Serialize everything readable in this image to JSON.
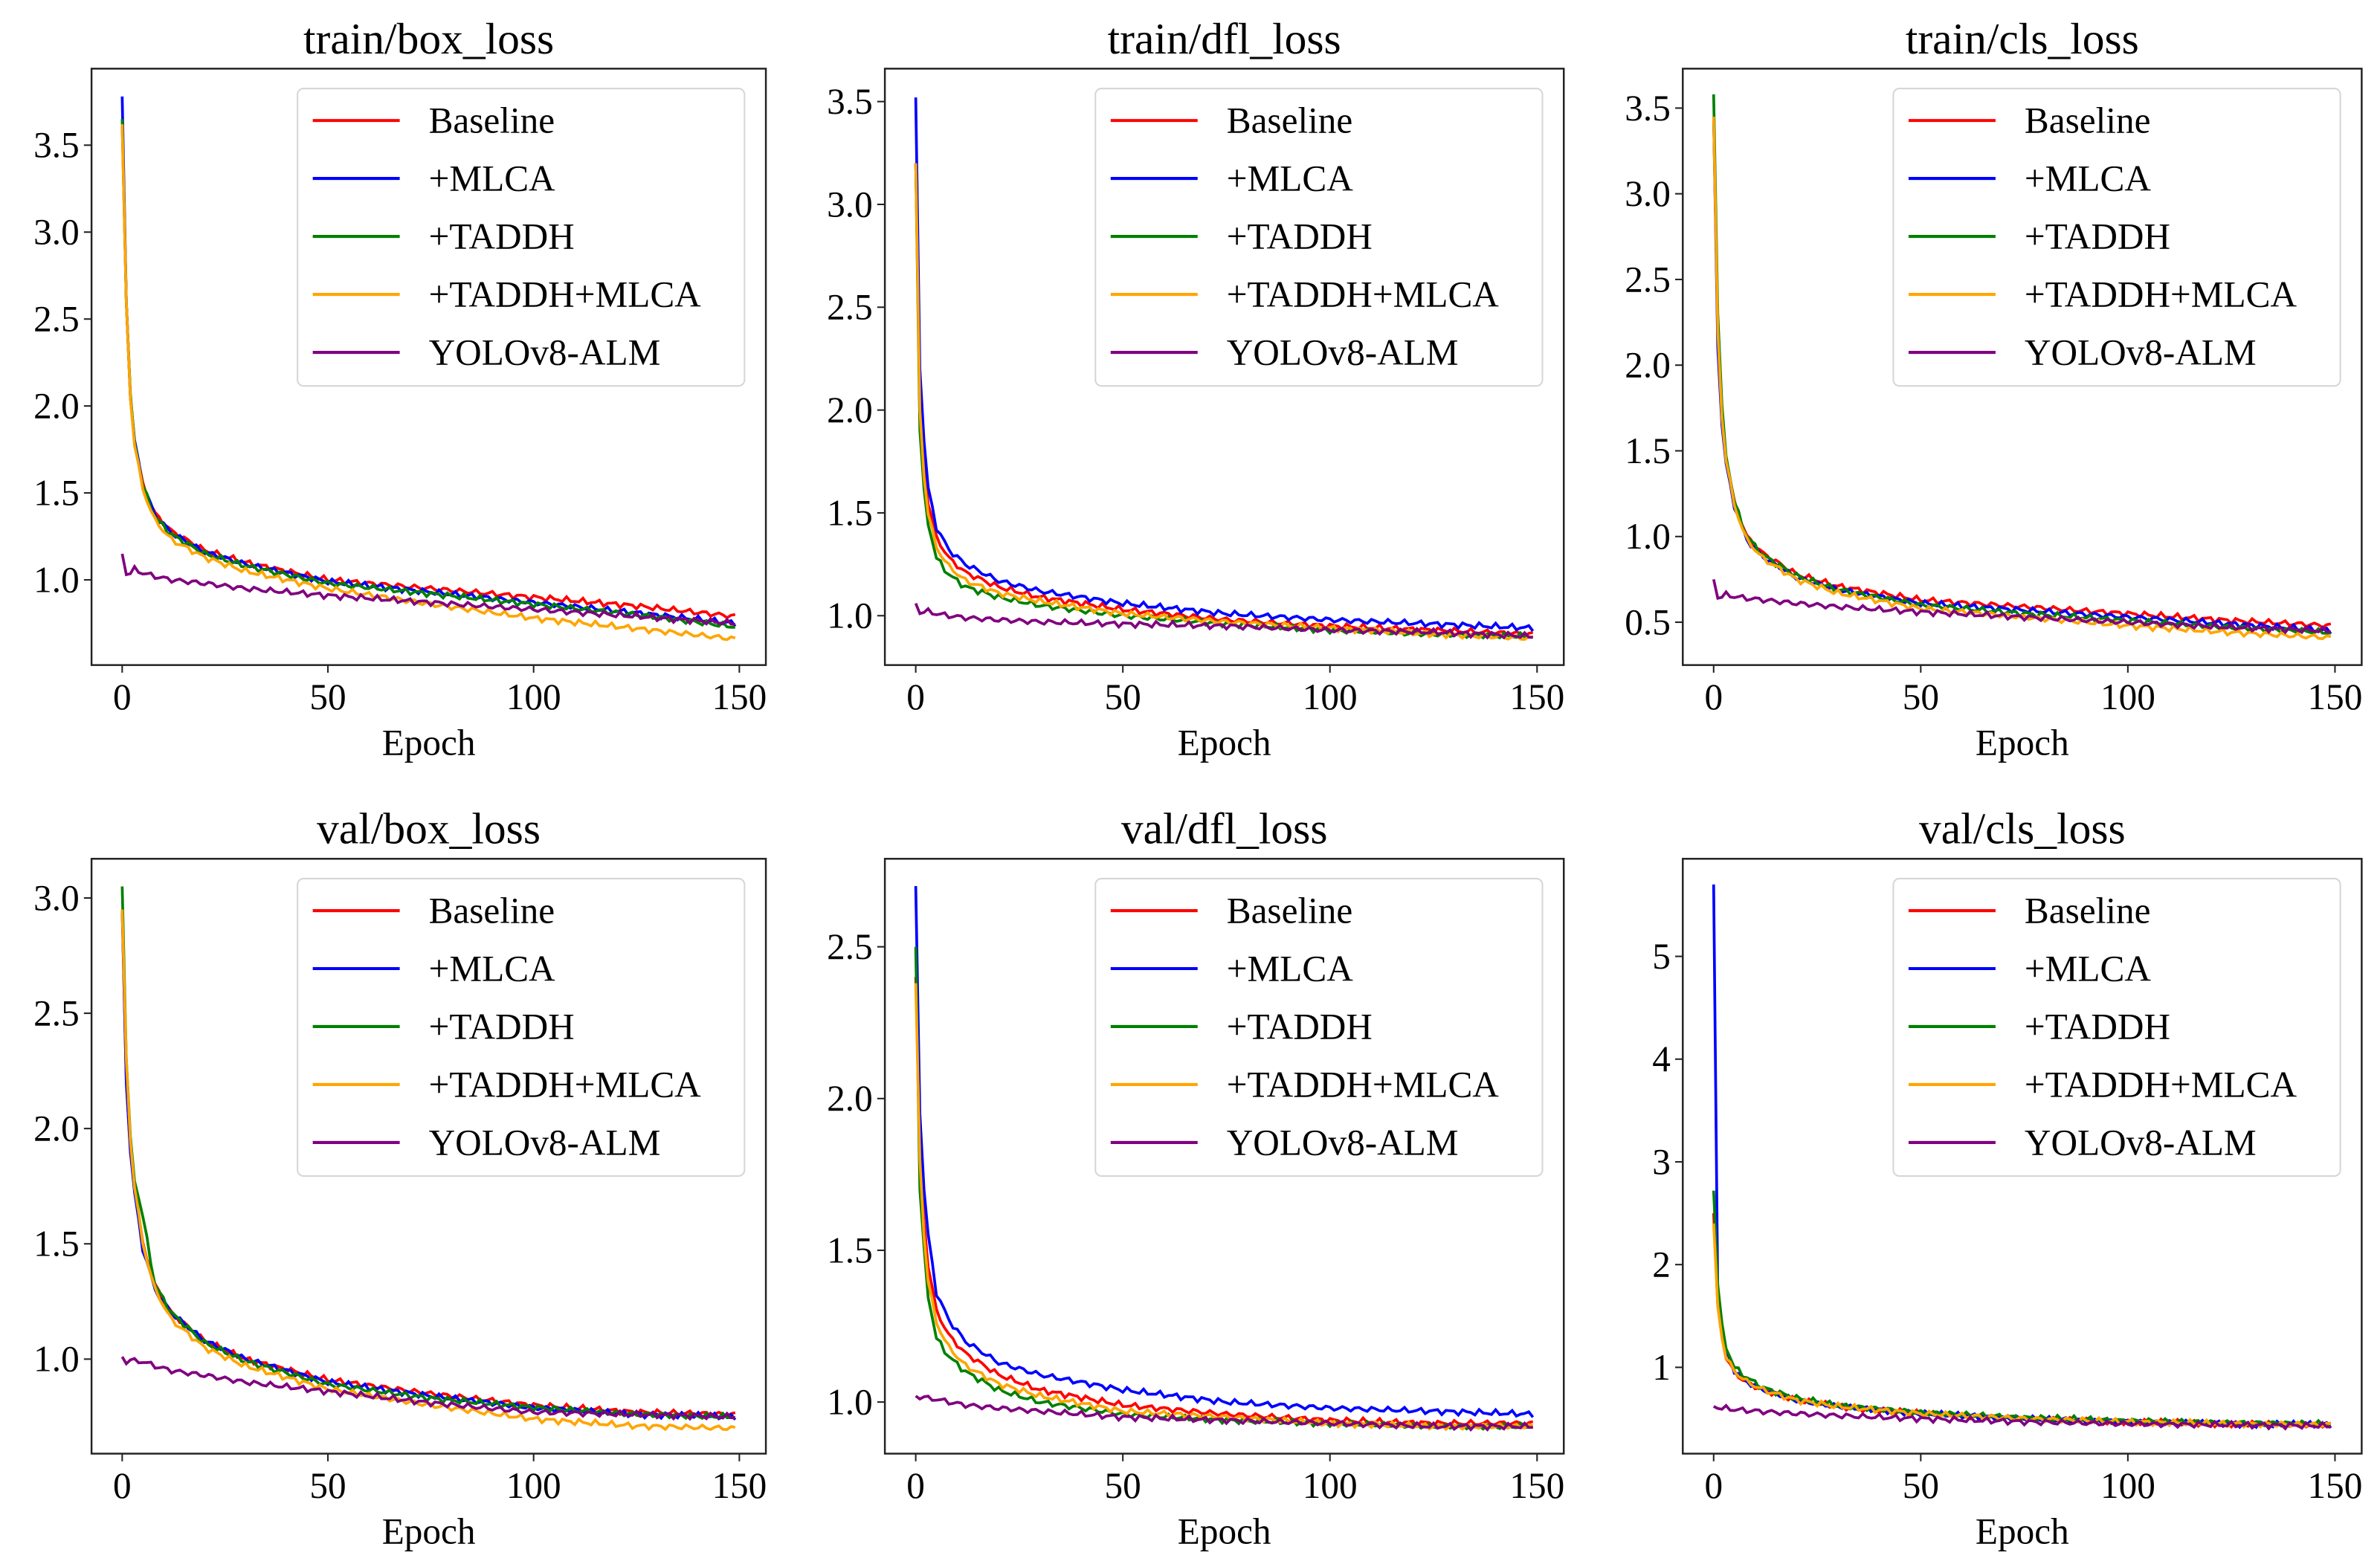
{
  "chart_data": [
    {
      "type": "line",
      "title": "train/box_loss",
      "xlabel": "Epoch",
      "ylabel": "",
      "xlim": [
        -7.45,
        156.45
      ],
      "ylim": [
        0.51,
        3.94
      ],
      "xticks": [
        0,
        50,
        100,
        150
      ],
      "yticks": [
        1.0,
        1.5,
        2.0,
        2.5,
        3.0,
        3.5
      ],
      "ytick_labels": [
        "1.0",
        "1.5",
        "2.0",
        "2.5",
        "3.0",
        "3.5"
      ],
      "legend": "top-right",
      "grid": false,
      "x": [
        0,
        1,
        2,
        3,
        5,
        8,
        12,
        20,
        30,
        50,
        75,
        100,
        125,
        149
      ],
      "series": [
        {
          "name": "Baseline",
          "color": "#ff0000",
          "values": [
            3.62,
            2.6,
            2.05,
            1.8,
            1.55,
            1.38,
            1.28,
            1.17,
            1.1,
            1.0,
            0.95,
            0.9,
            0.85,
            0.79
          ]
        },
        {
          "name": "+MLCA",
          "color": "#0000ff",
          "values": [
            3.78,
            2.6,
            2.05,
            1.8,
            1.55,
            1.37,
            1.27,
            1.16,
            1.09,
            0.99,
            0.93,
            0.87,
            0.81,
            0.75
          ]
        },
        {
          "name": "+TADDH",
          "color": "#008000",
          "values": [
            3.65,
            2.6,
            2.05,
            1.8,
            1.54,
            1.36,
            1.26,
            1.15,
            1.08,
            0.98,
            0.92,
            0.86,
            0.8,
            0.73
          ]
        },
        {
          "name": "+TADDH+MLCA",
          "color": "#ffa500",
          "values": [
            3.62,
            2.6,
            2.05,
            1.78,
            1.52,
            1.34,
            1.23,
            1.13,
            1.05,
            0.95,
            0.86,
            0.78,
            0.72,
            0.66
          ]
        },
        {
          "name": "YOLOv8-ALM",
          "color": "#800080",
          "values": [
            1.15,
            1.03,
            1.04,
            1.06,
            1.04,
            1.02,
            1.0,
            0.98,
            0.95,
            0.91,
            0.87,
            0.83,
            0.79,
            0.75
          ]
        }
      ]
    },
    {
      "type": "line",
      "title": "train/dfl_loss",
      "xlabel": "Epoch",
      "ylabel": "",
      "xlim": [
        -7.45,
        156.45
      ],
      "ylim": [
        0.76,
        3.66
      ],
      "xticks": [
        0,
        50,
        100,
        150
      ],
      "yticks": [
        1.0,
        1.5,
        2.0,
        2.5,
        3.0,
        3.5
      ],
      "ytick_labels": [
        "1.0",
        "1.5",
        "2.0",
        "2.5",
        "3.0",
        "3.5"
      ],
      "legend": "top-right",
      "grid": false,
      "x": [
        0,
        1,
        2,
        3,
        5,
        8,
        12,
        20,
        30,
        50,
        75,
        100,
        125,
        149
      ],
      "series": [
        {
          "name": "Baseline",
          "color": "#ff0000",
          "values": [
            3.2,
            2.1,
            1.75,
            1.55,
            1.38,
            1.28,
            1.21,
            1.14,
            1.09,
            1.03,
            0.98,
            0.95,
            0.93,
            0.91
          ]
        },
        {
          "name": "+MLCA",
          "color": "#0000ff",
          "values": [
            3.52,
            2.2,
            1.85,
            1.62,
            1.43,
            1.32,
            1.25,
            1.17,
            1.12,
            1.06,
            1.01,
            0.98,
            0.96,
            0.94
          ]
        },
        {
          "name": "+TADDH",
          "color": "#008000",
          "values": [
            3.2,
            1.9,
            1.6,
            1.45,
            1.28,
            1.2,
            1.14,
            1.09,
            1.05,
            1.0,
            0.96,
            0.93,
            0.91,
            0.9
          ]
        },
        {
          "name": "+TADDH+MLCA",
          "color": "#ffa500",
          "values": [
            3.2,
            2.0,
            1.68,
            1.5,
            1.33,
            1.24,
            1.17,
            1.11,
            1.07,
            1.01,
            0.97,
            0.94,
            0.91,
            0.89
          ]
        },
        {
          "name": "YOLOv8-ALM",
          "color": "#800080",
          "values": [
            1.06,
            1.01,
            1.02,
            1.02,
            1.01,
            1.0,
            0.99,
            0.98,
            0.97,
            0.96,
            0.95,
            0.93,
            0.92,
            0.9
          ]
        }
      ]
    },
    {
      "type": "line",
      "title": "train/cls_loss",
      "xlabel": "Epoch",
      "ylabel": "",
      "xlim": [
        -7.45,
        156.45
      ],
      "ylim": [
        0.25,
        3.73
      ],
      "xticks": [
        0,
        50,
        100,
        150
      ],
      "yticks": [
        0.5,
        1.0,
        1.5,
        2.0,
        2.5,
        3.0,
        3.5
      ],
      "ytick_labels": [
        "0.5",
        "1.0",
        "1.5",
        "2.0",
        "2.5",
        "3.0",
        "3.5"
      ],
      "legend": "top-right",
      "grid": false,
      "x": [
        0,
        1,
        2,
        3,
        5,
        8,
        12,
        20,
        30,
        50,
        75,
        100,
        125,
        149
      ],
      "series": [
        {
          "name": "Baseline",
          "color": "#ff0000",
          "values": [
            3.45,
            2.2,
            1.7,
            1.45,
            1.2,
            1.0,
            0.9,
            0.78,
            0.71,
            0.63,
            0.59,
            0.55,
            0.51,
            0.48
          ]
        },
        {
          "name": "+MLCA",
          "color": "#0000ff",
          "values": [
            3.45,
            2.1,
            1.65,
            1.42,
            1.18,
            0.98,
            0.88,
            0.76,
            0.69,
            0.61,
            0.57,
            0.53,
            0.49,
            0.45
          ]
        },
        {
          "name": "+TADDH",
          "color": "#008000",
          "values": [
            3.58,
            2.3,
            1.75,
            1.48,
            1.2,
            1.0,
            0.89,
            0.77,
            0.69,
            0.6,
            0.55,
            0.51,
            0.47,
            0.44
          ]
        },
        {
          "name": "+TADDH+MLCA",
          "color": "#ffa500",
          "values": [
            3.45,
            2.2,
            1.7,
            1.45,
            1.18,
            0.98,
            0.87,
            0.75,
            0.67,
            0.58,
            0.53,
            0.48,
            0.44,
            0.41
          ]
        },
        {
          "name": "YOLOv8-ALM",
          "color": "#800080",
          "values": [
            0.75,
            0.64,
            0.65,
            0.66,
            0.65,
            0.64,
            0.63,
            0.61,
            0.59,
            0.56,
            0.53,
            0.5,
            0.47,
            0.45
          ]
        }
      ]
    },
    {
      "type": "line",
      "title": "val/box_loss",
      "xlabel": "Epoch",
      "ylabel": "",
      "xlim": [
        -7.45,
        156.45
      ],
      "ylim": [
        0.59,
        3.17
      ],
      "xticks": [
        0,
        50,
        100,
        150
      ],
      "yticks": [
        1.0,
        1.5,
        2.0,
        2.5,
        3.0
      ],
      "ytick_labels": [
        "1.0",
        "1.5",
        "2.0",
        "2.5",
        "3.0"
      ],
      "legend": "top-right",
      "grid": false,
      "x": [
        0,
        1,
        2,
        3,
        5,
        8,
        12,
        20,
        30,
        50,
        75,
        100,
        125,
        149
      ],
      "series": [
        {
          "name": "Baseline",
          "color": "#ff0000",
          "values": [
            2.95,
            2.2,
            1.9,
            1.75,
            1.5,
            1.32,
            1.2,
            1.08,
            1.0,
            0.91,
            0.85,
            0.8,
            0.77,
            0.76
          ]
        },
        {
          "name": "+MLCA",
          "color": "#0000ff",
          "values": [
            2.95,
            2.2,
            1.9,
            1.72,
            1.48,
            1.3,
            1.2,
            1.08,
            1.0,
            0.9,
            0.84,
            0.79,
            0.76,
            0.75
          ]
        },
        {
          "name": "+TADDH",
          "color": "#008000",
          "values": [
            3.05,
            2.3,
            1.95,
            1.78,
            1.62,
            1.32,
            1.2,
            1.07,
            0.99,
            0.89,
            0.83,
            0.79,
            0.76,
            0.75
          ]
        },
        {
          "name": "+TADDH+MLCA",
          "color": "#ffa500",
          "values": [
            2.95,
            2.3,
            1.95,
            1.75,
            1.5,
            1.3,
            1.17,
            1.05,
            0.97,
            0.87,
            0.8,
            0.74,
            0.71,
            0.7
          ]
        },
        {
          "name": "YOLOv8-ALM",
          "color": "#800080",
          "values": [
            1.01,
            0.98,
            1.0,
            0.99,
            0.99,
            0.97,
            0.95,
            0.93,
            0.9,
            0.86,
            0.81,
            0.77,
            0.76,
            0.75
          ]
        }
      ]
    },
    {
      "type": "line",
      "title": "val/dfl_loss",
      "xlabel": "Epoch",
      "ylabel": "",
      "xlim": [
        -7.45,
        156.45
      ],
      "ylim": [
        0.83,
        2.79
      ],
      "xticks": [
        0,
        50,
        100,
        150
      ],
      "yticks": [
        1.0,
        1.5,
        2.0,
        2.5
      ],
      "ytick_labels": [
        "1.0",
        "1.5",
        "2.0",
        "2.5"
      ],
      "legend": "top-right",
      "grid": false,
      "x": [
        0,
        1,
        2,
        3,
        5,
        8,
        12,
        20,
        30,
        50,
        75,
        100,
        125,
        149
      ],
      "series": [
        {
          "name": "Baseline",
          "color": "#ff0000",
          "values": [
            2.4,
            1.85,
            1.6,
            1.45,
            1.3,
            1.22,
            1.16,
            1.09,
            1.04,
            0.99,
            0.96,
            0.94,
            0.93,
            0.93
          ]
        },
        {
          "name": "+MLCA",
          "color": "#0000ff",
          "values": [
            2.7,
            1.95,
            1.7,
            1.55,
            1.36,
            1.27,
            1.2,
            1.13,
            1.09,
            1.04,
            1.0,
            0.98,
            0.97,
            0.96
          ]
        },
        {
          "name": "+TADDH",
          "color": "#008000",
          "values": [
            2.5,
            1.7,
            1.5,
            1.35,
            1.21,
            1.15,
            1.1,
            1.04,
            1.0,
            0.96,
            0.94,
            0.93,
            0.92,
            0.92
          ]
        },
        {
          "name": "+TADDH+MLCA",
          "color": "#ffa500",
          "values": [
            2.38,
            1.8,
            1.55,
            1.4,
            1.26,
            1.18,
            1.12,
            1.06,
            1.02,
            0.97,
            0.95,
            0.93,
            0.92,
            0.92
          ]
        },
        {
          "name": "YOLOv8-ALM",
          "color": "#800080",
          "values": [
            1.02,
            1.01,
            1.02,
            1.01,
            1.01,
            1.0,
            0.99,
            0.98,
            0.97,
            0.95,
            0.94,
            0.93,
            0.92,
            0.92
          ]
        }
      ]
    },
    {
      "type": "line",
      "title": "val/cls_loss",
      "xlabel": "Epoch",
      "ylabel": "",
      "xlim": [
        -7.45,
        156.45
      ],
      "ylim": [
        0.16,
        5.95
      ],
      "xticks": [
        0,
        50,
        100,
        150
      ],
      "yticks": [
        1,
        2,
        3,
        4,
        5
      ],
      "ytick_labels": [
        "1",
        "2",
        "3",
        "4",
        "5"
      ],
      "legend": "top-right",
      "grid": false,
      "x": [
        0,
        1,
        2,
        3,
        5,
        8,
        12,
        20,
        30,
        50,
        75,
        100,
        125,
        149
      ],
      "series": [
        {
          "name": "Baseline",
          "color": "#ff0000",
          "values": [
            2.5,
            1.6,
            1.3,
            1.1,
            0.95,
            0.85,
            0.78,
            0.68,
            0.62,
            0.55,
            0.5,
            0.47,
            0.45,
            0.44
          ]
        },
        {
          "name": "+MLCA",
          "color": "#0000ff",
          "values": [
            5.7,
            1.7,
            1.35,
            1.15,
            0.97,
            0.86,
            0.78,
            0.68,
            0.62,
            0.55,
            0.5,
            0.47,
            0.45,
            0.44
          ]
        },
        {
          "name": "+TADDH",
          "color": "#008000",
          "values": [
            2.72,
            1.8,
            1.4,
            1.2,
            1.0,
            0.9,
            0.8,
            0.7,
            0.63,
            0.56,
            0.51,
            0.48,
            0.46,
            0.45
          ]
        },
        {
          "name": "+TADDH+MLCA",
          "color": "#ffa500",
          "values": [
            2.4,
            1.6,
            1.3,
            1.1,
            0.96,
            0.86,
            0.78,
            0.68,
            0.62,
            0.55,
            0.5,
            0.47,
            0.45,
            0.44
          ]
        },
        {
          "name": "YOLOv8-ALM",
          "color": "#800080",
          "values": [
            0.62,
            0.6,
            0.6,
            0.6,
            0.59,
            0.58,
            0.57,
            0.55,
            0.53,
            0.5,
            0.47,
            0.45,
            0.44,
            0.43
          ]
        }
      ]
    }
  ]
}
